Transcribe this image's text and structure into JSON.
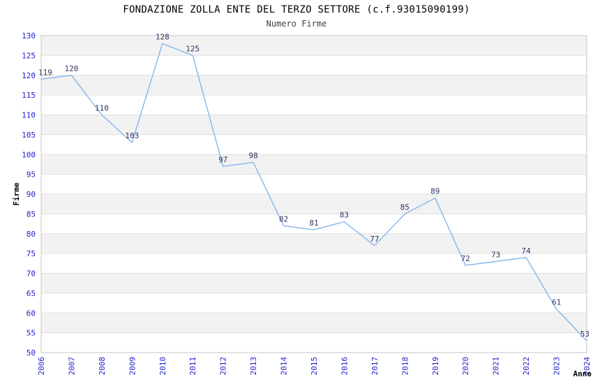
{
  "chart_data": {
    "type": "line",
    "title": "FONDAZIONE ZOLLA ENTE DEL TERZO SETTORE (c.f.93015090199)",
    "subtitle": "Numero Firme",
    "xlabel": "Anno",
    "ylabel": "Firme",
    "categories": [
      "2006",
      "2007",
      "2008",
      "2009",
      "2010",
      "2011",
      "2012",
      "2013",
      "2014",
      "2015",
      "2016",
      "2017",
      "2018",
      "2019",
      "2020",
      "2021",
      "2022",
      "2023",
      "2024"
    ],
    "values": [
      119,
      120,
      110,
      103,
      128,
      125,
      97,
      98,
      82,
      81,
      83,
      77,
      85,
      89,
      72,
      73,
      74,
      61,
      53
    ],
    "ylim": [
      50,
      130
    ],
    "ytick_step": 5,
    "yticks": [
      50,
      55,
      60,
      65,
      70,
      75,
      80,
      85,
      90,
      95,
      100,
      105,
      110,
      115,
      120,
      125,
      130
    ],
    "grid": true,
    "legend_position": "none",
    "data_labels_visible": true,
    "colors": {
      "line": "#85b6e8",
      "data_label": "#333366",
      "axis_tick_label": "#2222cc",
      "band_fill": "#f2f2f2",
      "grid_line": "#e0e0e0",
      "plot_border": "#c6c6c6",
      "title": "#000000",
      "subtitle": "#404040",
      "axis_title": "#000000"
    }
  }
}
